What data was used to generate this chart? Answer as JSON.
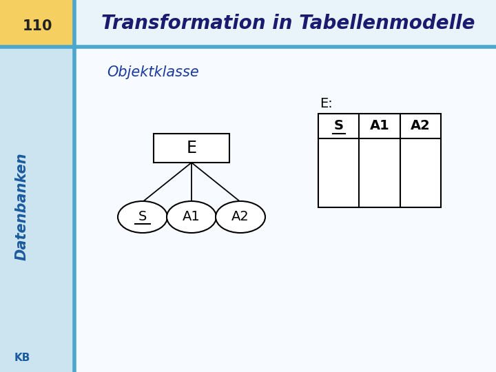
{
  "title": "Transformation in Tabellenmodelle",
  "slide_number": "110",
  "subtitle": "Objektklasse",
  "sidebar_text": "Datenbanken",
  "bottom_left": "KB",
  "bg_light": "#e8f4fa",
  "bg_sidebar": "#cce4f0",
  "bg_header_yellow": "#f5d060",
  "header_line_color": "#4aa8d0",
  "title_color": "#1a1a6e",
  "subtitle_color": "#1a3a9e",
  "sidebar_color": "#1a5a9e",
  "node_text_color": "#000000",
  "node_E_label": "E",
  "node_S_label": "S",
  "node_A1_label": "A1",
  "node_A2_label": "A2",
  "table_label": "E:",
  "table_cols": [
    "S",
    "A1",
    "A2"
  ]
}
